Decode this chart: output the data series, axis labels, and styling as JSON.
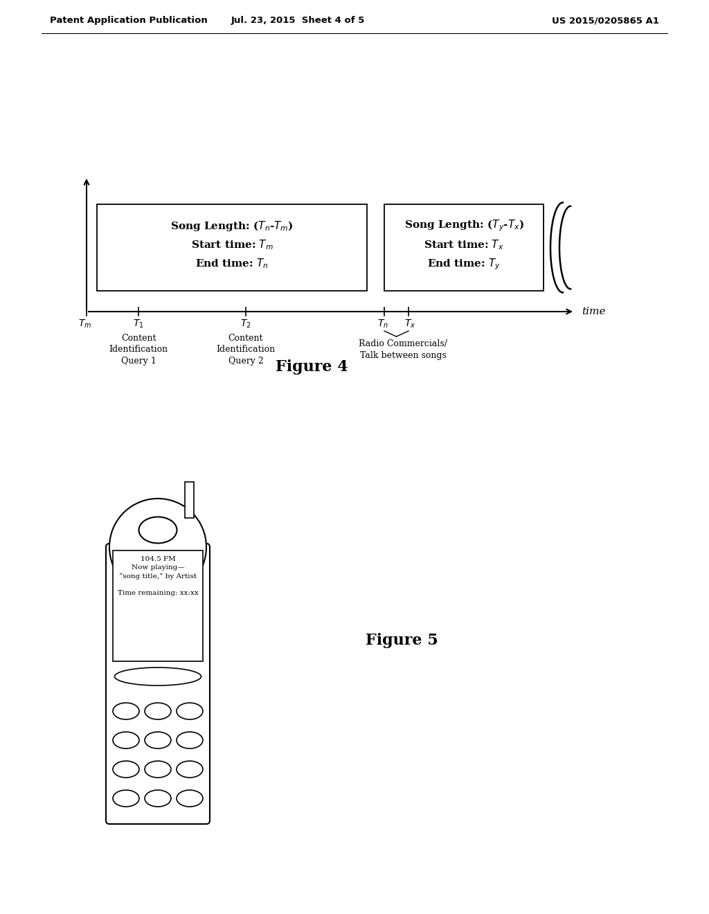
{
  "header_left": "Patent Application Publication",
  "header_center": "Jul. 23, 2015  Sheet 4 of 5",
  "header_right": "US 2015/0205865 A1",
  "fig4_title": "Figure 4",
  "fig5_title": "Figure 5",
  "time_label": "time",
  "box1_text": "Song Length: (Tₙ-Tₘ)\nStart time: Tₘ\nEnd time: Tₙ",
  "box2_text": "Song Length: (Tₑ-Tₓ)\nStart time: Tₓ\nEnd time: Tₑ",
  "phone_line1": "104.5 FM",
  "phone_line2": "Now playing—",
  "phone_line3": "“song title,” by Artist",
  "phone_line4": "",
  "phone_line5": "Time remaining: xx:xx",
  "background_color": "#ffffff"
}
